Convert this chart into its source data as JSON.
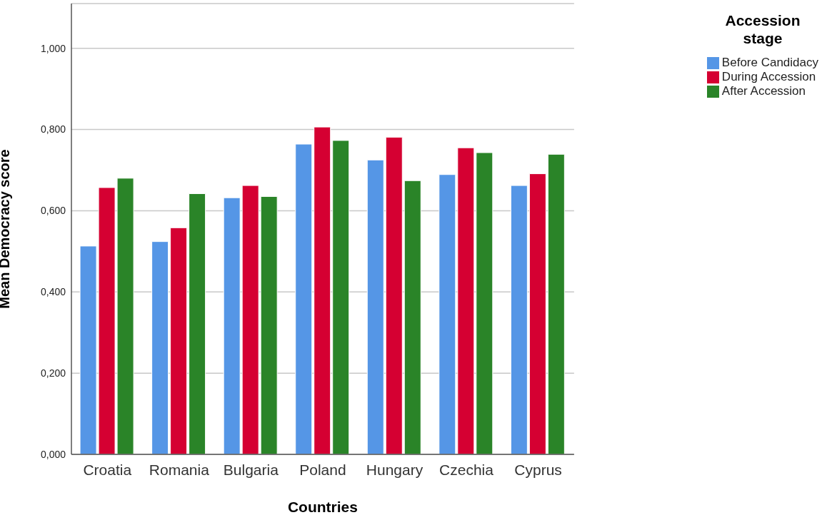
{
  "chart_data": {
    "type": "bar",
    "xlabel": "Countries",
    "ylabel": "Mean Democracy score",
    "legend_title": "Accession stage",
    "categories": [
      "Croatia",
      "Romania",
      "Bulgaria",
      "Poland",
      "Hungary",
      "Czechia",
      "Cyprus"
    ],
    "series": [
      {
        "name": "Before Candidacy",
        "color": "#5596e6",
        "values": [
          0.513,
          0.524,
          0.632,
          0.764,
          0.725,
          0.689,
          0.662
        ]
      },
      {
        "name": "During Accession",
        "color": "#d50032",
        "values": [
          0.657,
          0.558,
          0.662,
          0.806,
          0.781,
          0.755,
          0.691
        ]
      },
      {
        "name": "After Accession",
        "color": "#2a8428",
        "values": [
          0.68,
          0.642,
          0.635,
          0.773,
          0.674,
          0.743,
          0.739
        ]
      }
    ],
    "ylim": [
      0,
      1.11
    ],
    "yticks": [
      {
        "value": 0,
        "label": "0,000"
      },
      {
        "value": 0.2,
        "label": "0,200"
      },
      {
        "value": 0.4,
        "label": "0,400"
      },
      {
        "value": 0.6,
        "label": "0,600"
      },
      {
        "value": 0.8,
        "label": "0,800"
      },
      {
        "value": 1,
        "label": "1,000"
      }
    ],
    "grid": "y",
    "legend": "top right"
  }
}
